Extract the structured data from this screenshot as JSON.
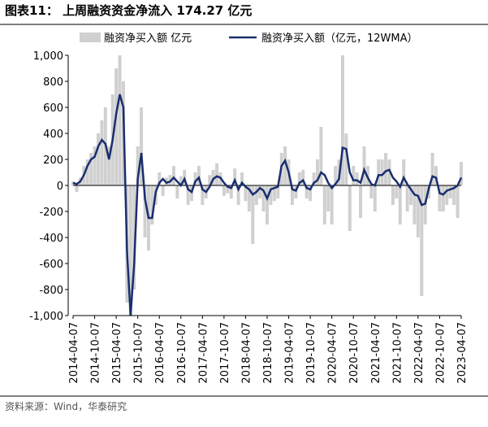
{
  "chart_data": {
    "type": "bar-line",
    "title": "图表11： 上周融资资金净流入 174.27 亿元",
    "source": "资料来源：Wind，华泰研究",
    "categories": [
      "2014-04-07",
      null,
      null,
      null,
      null,
      null,
      "2014-10-07",
      null,
      null,
      null,
      null,
      null,
      "2015-04-07",
      null,
      null,
      null,
      null,
      null,
      "2015-10-07",
      null,
      null,
      null,
      null,
      null,
      "2016-04-07",
      null,
      null,
      null,
      null,
      null,
      "2016-10-07",
      null,
      null,
      null,
      null,
      null,
      "2017-04-07",
      null,
      null,
      null,
      null,
      null,
      "2017-10-07",
      null,
      null,
      null,
      null,
      null,
      "2018-04-07",
      null,
      null,
      null,
      null,
      null,
      "2018-10-07",
      null,
      null,
      null,
      null,
      null,
      "2019-04-07",
      null,
      null,
      null,
      null,
      null,
      "2019-10-07",
      null,
      null,
      null,
      null,
      null,
      "2020-04-07",
      null,
      null,
      null,
      null,
      null,
      "2020-10-07",
      null,
      null,
      null,
      null,
      null,
      "2021-04-07",
      null,
      null,
      null,
      null,
      null,
      "2021-10-07",
      null,
      null,
      null,
      null,
      null,
      "2022-04-07",
      null,
      null,
      null,
      null,
      null,
      "2022-10-07",
      null,
      null,
      null,
      null,
      null,
      "2023-04-07"
    ],
    "series": [
      {
        "name": "融资净买入额 亿元",
        "color": "#d0d0d0",
        "kind": "bar",
        "values": [
          30,
          -50,
          60,
          150,
          200,
          250,
          300,
          400,
          500,
          600,
          300,
          700,
          900,
          1000,
          800,
          -900,
          -1000,
          -800,
          300,
          600,
          -400,
          -500,
          -300,
          -150,
          100,
          -80,
          60,
          80,
          150,
          -100,
          70,
          120,
          -150,
          -120,
          100,
          150,
          -150,
          -100,
          80,
          120,
          170,
          100,
          -80,
          -60,
          -100,
          130,
          -150,
          100,
          -120,
          -200,
          -450,
          -150,
          -100,
          -200,
          -300,
          -150,
          -120,
          -100,
          250,
          300,
          200,
          -150,
          -100,
          100,
          120,
          -100,
          -120,
          100,
          200,
          450,
          -300,
          -200,
          -300,
          150,
          200,
          1000,
          400,
          -350,
          150,
          100,
          -250,
          300,
          150,
          -100,
          -200,
          200,
          200,
          250,
          200,
          -150,
          -100,
          -300,
          200,
          -200,
          -150,
          -300,
          -400,
          -850,
          -300,
          -100,
          250,
          150,
          -200,
          -200,
          -150,
          -100,
          -150,
          -250,
          180
        ]
      },
      {
        "name": "融资净买入额（亿元，12WMA）",
        "color": "#1a2e6e",
        "kind": "line",
        "values": [
          20,
          10,
          30,
          80,
          150,
          200,
          220,
          300,
          350,
          320,
          200,
          350,
          550,
          700,
          600,
          -500,
          -1000,
          -600,
          50,
          250,
          -100,
          -250,
          -250,
          -50,
          20,
          50,
          20,
          30,
          60,
          30,
          0,
          50,
          -30,
          -50,
          30,
          60,
          -30,
          -50,
          -10,
          50,
          70,
          60,
          20,
          -10,
          -20,
          40,
          -30,
          20,
          -10,
          -30,
          -70,
          -50,
          -20,
          -40,
          -100,
          -30,
          -20,
          -10,
          150,
          190,
          100,
          -30,
          -40,
          20,
          40,
          -20,
          -30,
          20,
          40,
          100,
          80,
          20,
          -20,
          10,
          50,
          290,
          280,
          100,
          40,
          40,
          20,
          120,
          60,
          10,
          0,
          80,
          80,
          110,
          120,
          60,
          30,
          -10,
          60,
          10,
          -30,
          -70,
          -80,
          -150,
          -140,
          -20,
          70,
          60,
          -60,
          -70,
          -40,
          -30,
          -20,
          0,
          60
        ]
      }
    ],
    "ylim": [
      -1000,
      1000
    ],
    "yticks": [
      {
        "value": -1000,
        "label": "-1,000"
      },
      -800,
      -600,
      -400,
      -200,
      0,
      200,
      400,
      600,
      800,
      {
        "value": 1000,
        "label": "1,000"
      }
    ]
  }
}
